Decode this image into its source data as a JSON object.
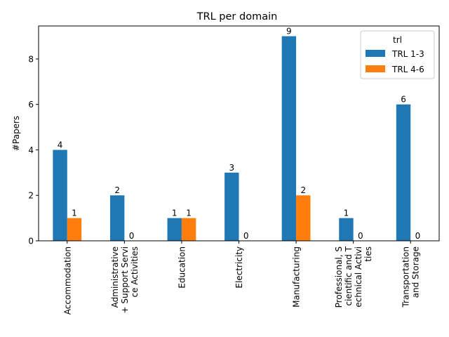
{
  "chart_data": {
    "type": "bar",
    "title": "TRL per domain",
    "xlabel": "",
    "ylabel": "#Papers",
    "ylim": [
      0,
      9.45
    ],
    "yticks": [
      0,
      2,
      4,
      6,
      8
    ],
    "categories": [
      [
        "Accommodation"
      ],
      [
        "Administrative",
        "+ Support Servi",
        "ce Activities"
      ],
      [
        "Education"
      ],
      [
        "Electricity"
      ],
      [
        "Manufacturing"
      ],
      [
        "Professional, S",
        "cientific and T",
        "echnical Activi",
        "ties"
      ],
      [
        "Transportation",
        "and Storage"
      ]
    ],
    "series": [
      {
        "name": "TRL 1-3",
        "color": "#1f77b4",
        "values": [
          4,
          2,
          1,
          3,
          9,
          1,
          6
        ]
      },
      {
        "name": "TRL 4-6",
        "color": "#ff7f0e",
        "values": [
          1,
          0,
          1,
          0,
          2,
          0,
          0
        ]
      }
    ],
    "legend": {
      "title": "trl",
      "placement": "top-right"
    },
    "grid": false
  }
}
